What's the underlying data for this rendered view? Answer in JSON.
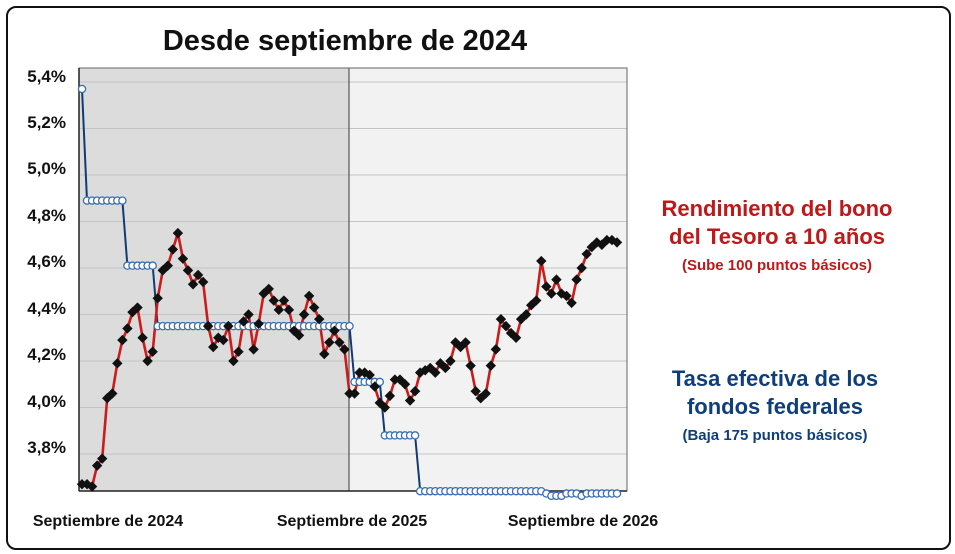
{
  "chart_data": {
    "type": "line",
    "title": "Desde septiembre de 2024",
    "xlabel": "",
    "ylabel": "",
    "x_tick_labels": [
      "Septiembre de 2024",
      "Septiembre de 2025",
      "Septiembre de 2026"
    ],
    "y_tick_labels": [
      "5,4%",
      "5,2%",
      "5,0%",
      "4,8%",
      "4,6%",
      "4,4%",
      "4,2%",
      "4,0%",
      "3,8%"
    ],
    "ylim": [
      3.65,
      5.42
    ],
    "x_range_weeks": [
      0,
      104
    ],
    "grid": true,
    "series": [
      {
        "name": "Rendimiento del bono del Tesoro a 10 años",
        "color": "#cc1b1b",
        "marker": "black-diamond",
        "points": [
          [
            0,
            3.67
          ],
          [
            1,
            3.67
          ],
          [
            2,
            3.66
          ],
          [
            3,
            3.75
          ],
          [
            4,
            3.78
          ],
          [
            5,
            4.04
          ],
          [
            6,
            4.06
          ],
          [
            7,
            4.19
          ],
          [
            8,
            4.29
          ],
          [
            9,
            4.34
          ],
          [
            10,
            4.41
          ],
          [
            11,
            4.43
          ],
          [
            12,
            4.3
          ],
          [
            13,
            4.2
          ],
          [
            14,
            4.24
          ],
          [
            15,
            4.47
          ],
          [
            16,
            4.59
          ],
          [
            17,
            4.61
          ],
          [
            18,
            4.68
          ],
          [
            19,
            4.75
          ],
          [
            20,
            4.64
          ],
          [
            21,
            4.59
          ],
          [
            22,
            4.53
          ],
          [
            23,
            4.57
          ],
          [
            24,
            4.54
          ],
          [
            25,
            4.35
          ],
          [
            26,
            4.26
          ],
          [
            27,
            4.3
          ],
          [
            28,
            4.29
          ],
          [
            29,
            4.35
          ],
          [
            30,
            4.2
          ],
          [
            31,
            4.24
          ],
          [
            32,
            4.37
          ],
          [
            33,
            4.4
          ],
          [
            34,
            4.25
          ],
          [
            35,
            4.36
          ],
          [
            36,
            4.49
          ],
          [
            37,
            4.51
          ],
          [
            38,
            4.46
          ],
          [
            39,
            4.42
          ],
          [
            40,
            4.46
          ],
          [
            41,
            4.42
          ],
          [
            42,
            4.33
          ],
          [
            43,
            4.31
          ],
          [
            44,
            4.4
          ],
          [
            45,
            4.48
          ],
          [
            46,
            4.43
          ],
          [
            47,
            4.38
          ],
          [
            48,
            4.23
          ],
          [
            49,
            4.28
          ],
          [
            50,
            4.33
          ],
          [
            51,
            4.28
          ],
          [
            52,
            4.25
          ],
          [
            53,
            4.06
          ],
          [
            54,
            4.06
          ],
          [
            55,
            4.15
          ],
          [
            56,
            4.15
          ],
          [
            57,
            4.14
          ],
          [
            58,
            4.09
          ],
          [
            59,
            4.02
          ],
          [
            60,
            4.0
          ],
          [
            61,
            4.05
          ],
          [
            62,
            4.12
          ],
          [
            63,
            4.12
          ],
          [
            64,
            4.1
          ],
          [
            65,
            4.03
          ],
          [
            66,
            4.07
          ],
          [
            67,
            4.15
          ],
          [
            68,
            4.16
          ],
          [
            69,
            4.17
          ],
          [
            70,
            4.15
          ],
          [
            71,
            4.19
          ],
          [
            72,
            4.17
          ],
          [
            73,
            4.2
          ],
          [
            74,
            4.28
          ],
          [
            75,
            4.26
          ],
          [
            76,
            4.28
          ],
          [
            77,
            4.18
          ],
          [
            78,
            4.07
          ],
          [
            79,
            4.04
          ],
          [
            80,
            4.06
          ],
          [
            81,
            4.18
          ],
          [
            82,
            4.25
          ],
          [
            83,
            4.38
          ],
          [
            84,
            4.35
          ],
          [
            85,
            4.32
          ],
          [
            86,
            4.3
          ],
          [
            87,
            4.38
          ],
          [
            88,
            4.4
          ],
          [
            89,
            4.44
          ],
          [
            90,
            4.46
          ],
          [
            91,
            4.63
          ],
          [
            92,
            4.52
          ],
          [
            93,
            4.49
          ],
          [
            94,
            4.55
          ],
          [
            95,
            4.49
          ],
          [
            96,
            4.48
          ],
          [
            97,
            4.45
          ],
          [
            98,
            4.55
          ],
          [
            99,
            4.6
          ],
          [
            100,
            4.66
          ],
          [
            101,
            4.69
          ],
          [
            102,
            4.71
          ],
          [
            103,
            4.7
          ],
          [
            104,
            4.72
          ],
          [
            105,
            4.72
          ],
          [
            106,
            4.71
          ]
        ]
      },
      {
        "name": "Tasa efectiva de los fondos federales",
        "color": "#123a75",
        "marker": "white-circle",
        "points": [
          [
            0,
            5.37
          ],
          [
            1,
            4.89
          ],
          [
            2,
            4.89
          ],
          [
            3,
            4.89
          ],
          [
            4,
            4.89
          ],
          [
            5,
            4.89
          ],
          [
            6,
            4.89
          ],
          [
            7,
            4.89
          ],
          [
            8,
            4.89
          ],
          [
            9,
            4.61
          ],
          [
            10,
            4.61
          ],
          [
            11,
            4.61
          ],
          [
            12,
            4.61
          ],
          [
            13,
            4.61
          ],
          [
            14,
            4.61
          ],
          [
            15,
            4.35
          ],
          [
            16,
            4.35
          ],
          [
            17,
            4.35
          ],
          [
            18,
            4.35
          ],
          [
            19,
            4.35
          ],
          [
            20,
            4.35
          ],
          [
            21,
            4.35
          ],
          [
            22,
            4.35
          ],
          [
            23,
            4.35
          ],
          [
            24,
            4.35
          ],
          [
            25,
            4.35
          ],
          [
            26,
            4.35
          ],
          [
            27,
            4.35
          ],
          [
            28,
            4.35
          ],
          [
            29,
            4.35
          ],
          [
            30,
            4.35
          ],
          [
            31,
            4.35
          ],
          [
            32,
            4.35
          ],
          [
            33,
            4.35
          ],
          [
            34,
            4.35
          ],
          [
            35,
            4.35
          ],
          [
            36,
            4.35
          ],
          [
            37,
            4.35
          ],
          [
            38,
            4.35
          ],
          [
            39,
            4.35
          ],
          [
            40,
            4.35
          ],
          [
            41,
            4.35
          ],
          [
            42,
            4.35
          ],
          [
            43,
            4.35
          ],
          [
            44,
            4.35
          ],
          [
            45,
            4.35
          ],
          [
            46,
            4.35
          ],
          [
            47,
            4.35
          ],
          [
            48,
            4.35
          ],
          [
            49,
            4.35
          ],
          [
            50,
            4.35
          ],
          [
            51,
            4.35
          ],
          [
            52,
            4.35
          ],
          [
            53,
            4.35
          ],
          [
            54,
            4.11
          ],
          [
            55,
            4.11
          ],
          [
            56,
            4.11
          ],
          [
            57,
            4.11
          ],
          [
            58,
            4.11
          ],
          [
            59,
            4.11
          ],
          [
            60,
            3.88
          ],
          [
            61,
            3.88
          ],
          [
            62,
            3.88
          ],
          [
            63,
            3.88
          ],
          [
            64,
            3.88
          ],
          [
            65,
            3.88
          ],
          [
            66,
            3.88
          ],
          [
            67,
            3.64
          ],
          [
            68,
            3.64
          ],
          [
            69,
            3.64
          ],
          [
            70,
            3.64
          ],
          [
            71,
            3.64
          ],
          [
            72,
            3.64
          ],
          [
            73,
            3.64
          ],
          [
            74,
            3.64
          ],
          [
            75,
            3.64
          ],
          [
            76,
            3.64
          ],
          [
            77,
            3.64
          ],
          [
            78,
            3.64
          ],
          [
            79,
            3.64
          ],
          [
            80,
            3.64
          ],
          [
            81,
            3.64
          ],
          [
            82,
            3.64
          ],
          [
            83,
            3.64
          ],
          [
            84,
            3.64
          ],
          [
            85,
            3.64
          ],
          [
            86,
            3.64
          ],
          [
            87,
            3.64
          ],
          [
            88,
            3.64
          ],
          [
            89,
            3.64
          ],
          [
            90,
            3.64
          ],
          [
            91,
            3.64
          ],
          [
            92,
            3.63
          ],
          [
            93,
            3.62
          ],
          [
            94,
            3.62
          ],
          [
            95,
            3.62
          ],
          [
            96,
            3.63
          ],
          [
            97,
            3.63
          ],
          [
            98,
            3.63
          ],
          [
            99,
            3.62
          ],
          [
            100,
            3.63
          ],
          [
            101,
            3.63
          ],
          [
            102,
            3.63
          ],
          [
            103,
            3.63
          ],
          [
            104,
            3.63
          ],
          [
            105,
            3.63
          ],
          [
            106,
            3.63
          ]
        ]
      }
    ],
    "annotations": [
      {
        "series": "Rendimiento del bono del Tesoro a 10 años",
        "color": "#c01818",
        "lines": [
          "Rendimiento del bono",
          "del Tesoro a 10 años"
        ],
        "sub": "(Sube 100 puntos básicos)"
      },
      {
        "series": "Tasa efectiva de los fondos federales",
        "color": "#0f3f7a",
        "lines": [
          "Tasa efectiva de los",
          "fondos federales"
        ],
        "sub": "(Baja 175 puntos básicos)"
      }
    ],
    "shaded_region": "Septiembre de 2024 a Septiembre de 2025",
    "shade_color": "#dcdcdc",
    "plot_background": "#f2f2f2"
  }
}
